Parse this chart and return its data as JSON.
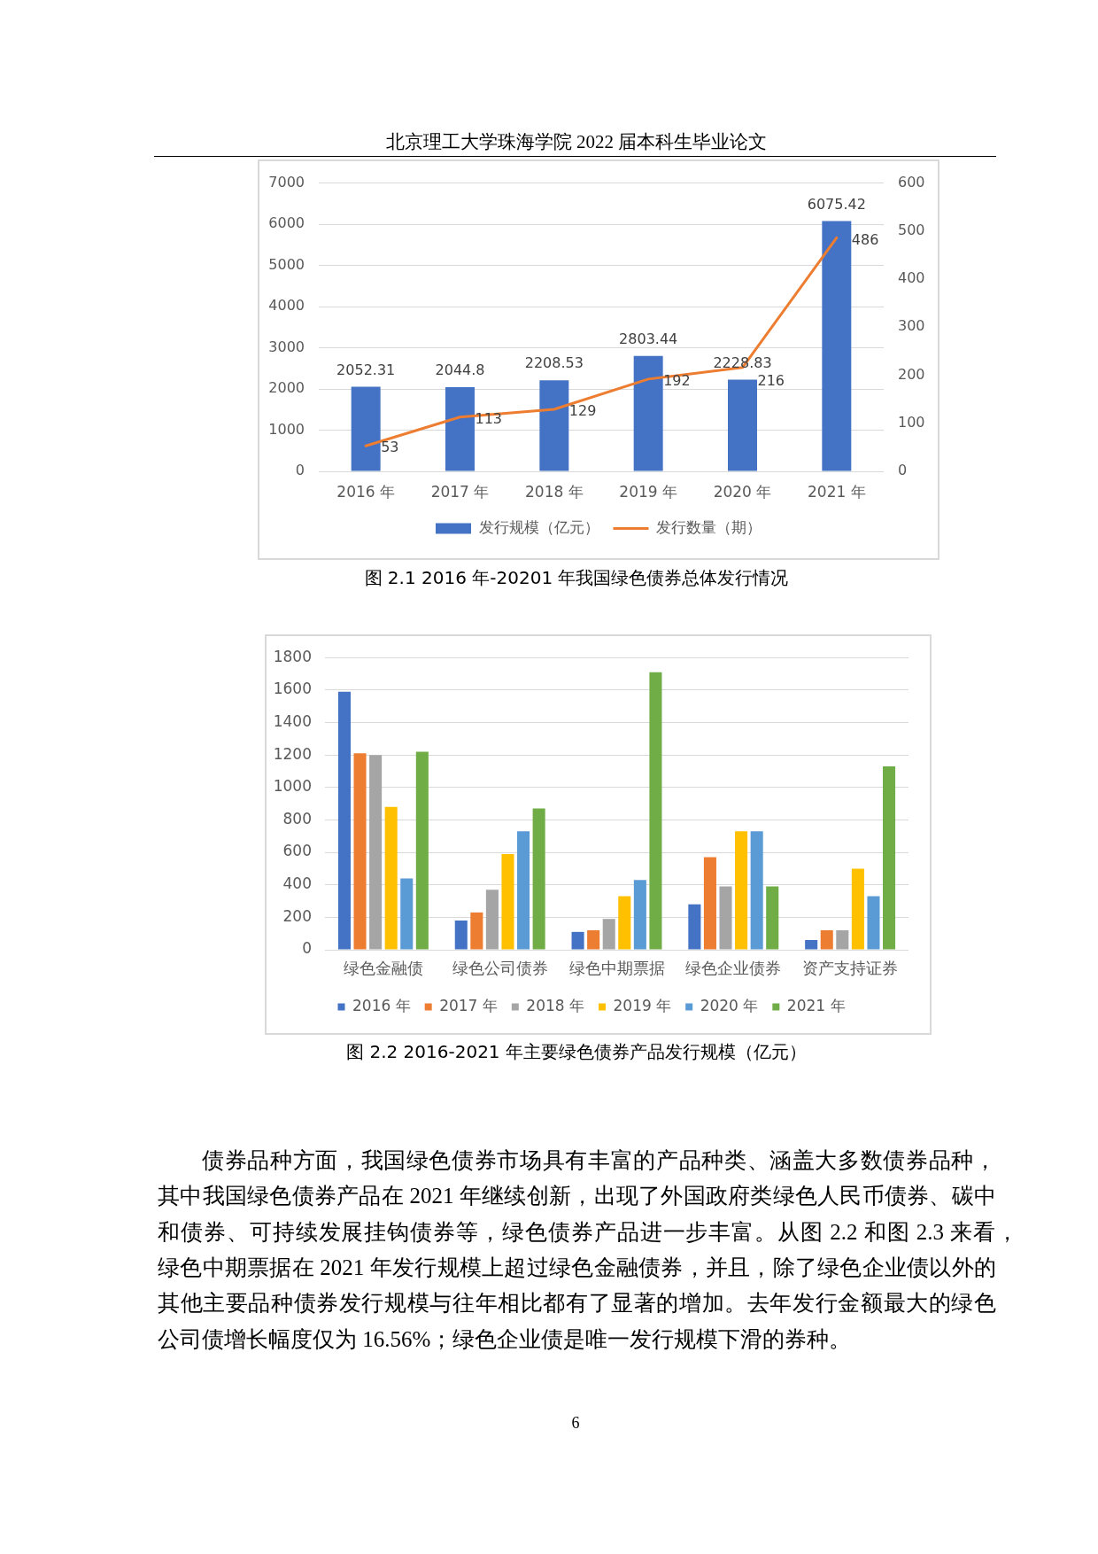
{
  "chart_data": [
    {
      "type": "bar",
      "title": "图 2.1 2016 年-20201 年我国绿色债券总体发行情况",
      "annotations": [
        "北京理工大学珠海学院 2022 届本科生毕业论文"
      ],
      "categories": [
        "2016 年",
        "2017 年",
        "2018 年",
        "2019 年",
        "2020 年",
        "2021 年"
      ],
      "series": [
        {
          "name": "发行规模（亿元）",
          "type": "bar",
          "color": "#4472c4",
          "values": [
            2052.31,
            2044.8,
            2208.53,
            2803.44,
            2228.83,
            6075.42
          ]
        },
        {
          "name": "发行数量（期）",
          "type": "line",
          "axis": "y2",
          "color": "#ed7d31",
          "values": [
            53,
            113,
            129,
            192,
            216,
            486
          ]
        }
      ],
      "ylim": [
        0,
        7000
      ],
      "yticks": [
        0,
        1000,
        2000,
        3000,
        4000,
        5000,
        6000,
        7000
      ],
      "y2lim": [
        0,
        600
      ],
      "y2ticks": [
        0,
        100,
        200,
        300,
        400,
        500,
        600
      ],
      "grid": "y",
      "legend": "bottom",
      "data_labels": true,
      "marker": "none"
    },
    {
      "type": "bar",
      "title": "图 2.2 2016-2021 年主要绿色债券产品发行规模（亿元）",
      "annotations": [
        "债券品种方面，我国绿色债券市场具有丰富的产品种类、涵盖大多数债券品种，",
        "其中我国绿色债券产品在 2021 年继续创新，出现了外国政府类绿色人民币债券、碳中",
        "和债券、可持续发展挂钩债券等，绿色债券产品进一步丰富。从图 2.2 和图 2.3 来看，",
        "绿色中期票据在 2021 年发行规模上超过绿色金融债券，并且，除了绿色企业债以外的",
        "其他主要品种债券发行规模与往年相比都有了显著的增加。去年发行金额最大的绿色",
        "公司债增长幅度仅为 16.56%；绿色企业债是唯一发行规模下滑的券种。",
        "6"
      ],
      "categories": [
        "绿色金融债",
        "绿色公司债券",
        "绿色中期票据",
        "绿色企业债券",
        "资产支持证券"
      ],
      "series": [
        {
          "name": "2016 年",
          "color": "#4472c4",
          "values": [
            1590,
            180,
            110,
            280,
            60
          ]
        },
        {
          "name": "2017 年",
          "color": "#ed7d31",
          "values": [
            1210,
            230,
            120,
            570,
            120
          ]
        },
        {
          "name": "2018 年",
          "color": "#a5a5a5",
          "values": [
            1200,
            370,
            190,
            390,
            120
          ]
        },
        {
          "name": "2019 年",
          "color": "#ffc000",
          "values": [
            880,
            590,
            330,
            730,
            500
          ]
        },
        {
          "name": "2020 年",
          "color": "#5b9bd5",
          "values": [
            440,
            730,
            430,
            730,
            330
          ]
        },
        {
          "name": "2021 年",
          "color": "#70ad47",
          "values": [
            1220,
            870,
            1710,
            390,
            1130
          ]
        }
      ],
      "ylim": [
        0,
        1800
      ],
      "yticks": [
        0,
        200,
        400,
        600,
        800,
        1000,
        1200,
        1400,
        1600,
        1800
      ],
      "grid": "y",
      "legend": "bottom"
    }
  ]
}
